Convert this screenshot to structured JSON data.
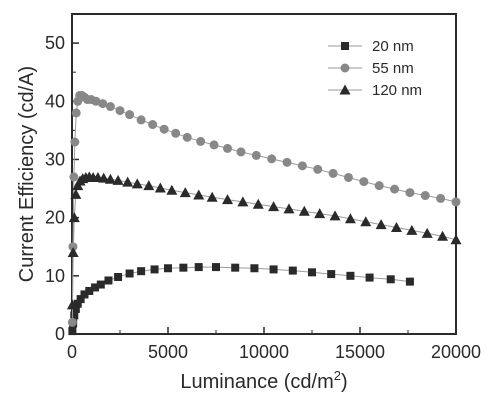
{
  "chart_data": {
    "type": "scatter",
    "xlabel": "Luminance (cd/m",
    "xlabel_sup": "2",
    "xlabel_suffix": ")",
    "ylabel": "Current Efficiency (cd/A)",
    "xlim": [
      0,
      20000
    ],
    "ylim": [
      0,
      55
    ],
    "xticks": [
      0,
      5000,
      10000,
      15000,
      20000
    ],
    "yticks": [
      0,
      10,
      20,
      30,
      40,
      50
    ],
    "grid": false,
    "legend_position": "top-right",
    "series": [
      {
        "name": "20 nm",
        "marker": "square",
        "color": "#2a2a2a",
        "x": [
          20,
          60,
          120,
          200,
          300,
          450,
          650,
          900,
          1200,
          1500,
          1900,
          2400,
          3000,
          3600,
          4300,
          5000,
          5800,
          6600,
          7500,
          8500,
          9500,
          10500,
          11500,
          12500,
          13500,
          14500,
          15500,
          16600,
          17600
        ],
        "y": [
          0.5,
          1.8,
          3.2,
          4.3,
          5.2,
          6.0,
          6.8,
          7.4,
          8.0,
          8.5,
          9.2,
          9.8,
          10.4,
          10.8,
          11.1,
          11.3,
          11.4,
          11.5,
          11.5,
          11.4,
          11.3,
          11.1,
          10.9,
          10.6,
          10.3,
          10.0,
          9.7,
          9.4,
          9.0
        ]
      },
      {
        "name": "55 nm",
        "marker": "circle",
        "color": "#888888",
        "x": [
          20,
          50,
          100,
          150,
          220,
          300,
          400,
          520,
          650,
          800,
          1000,
          1250,
          1600,
          2000,
          2500,
          3000,
          3600,
          4200,
          4800,
          5400,
          6000,
          6700,
          7400,
          8100,
          8800,
          9600,
          10400,
          11200,
          12000,
          12800,
          13600,
          14400,
          15200,
          16000,
          16800,
          17600,
          18400,
          19200,
          20000
        ],
        "y": [
          2,
          15,
          27,
          33,
          38,
          40,
          41,
          41,
          40.7,
          40.3,
          40.3,
          40,
          39.6,
          39.1,
          38.4,
          37.7,
          36.8,
          36.0,
          35.2,
          34.5,
          33.8,
          33.1,
          32.5,
          31.9,
          31.3,
          30.7,
          30.1,
          29.5,
          28.9,
          28.3,
          27.6,
          26.9,
          26.2,
          25.5,
          24.9,
          24.3,
          23.8,
          23.3,
          22.7
        ]
      },
      {
        "name": "120 nm",
        "marker": "triangle",
        "color": "#2a2a2a",
        "x": [
          20,
          60,
          120,
          200,
          300,
          420,
          560,
          720,
          900,
          1100,
          1350,
          1650,
          2000,
          2400,
          2900,
          3400,
          4000,
          4600,
          5200,
          5900,
          6600,
          7300,
          8100,
          8900,
          9700,
          10500,
          11300,
          12100,
          12900,
          13700,
          14500,
          15300,
          16100,
          16900,
          17700,
          18500,
          19300,
          20000
        ],
        "y": [
          5,
          14,
          20,
          24,
          25.5,
          26.3,
          26.7,
          26.9,
          27,
          26.9,
          26.9,
          26.8,
          26.6,
          26.4,
          26.1,
          25.8,
          25.5,
          25.1,
          24.7,
          24.3,
          23.9,
          23.5,
          23.1,
          22.7,
          22.3,
          21.9,
          21.5,
          21.1,
          20.7,
          20.3,
          19.8,
          19.3,
          18.8,
          18.3,
          17.8,
          17.3,
          16.8,
          16.2
        ]
      }
    ]
  }
}
